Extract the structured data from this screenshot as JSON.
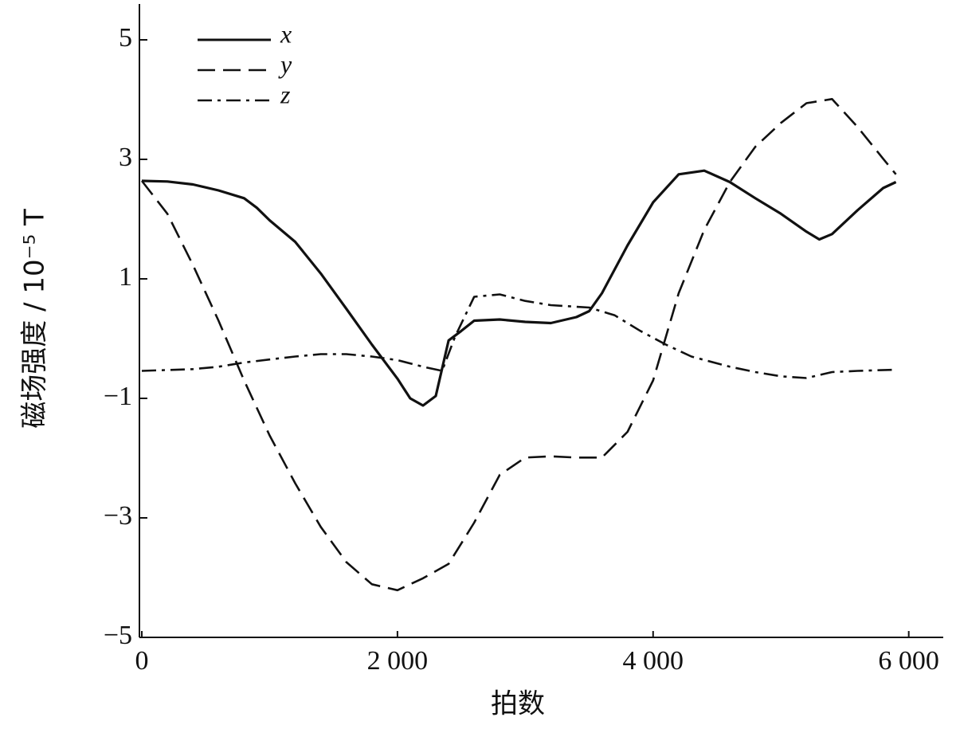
{
  "chart_data": {
    "type": "line",
    "xlabel": "拍数",
    "ylabel": "磁场强度 / 10⁻⁵ T",
    "xlim": [
      0,
      6270
    ],
    "ylim": [
      -5,
      5.6
    ],
    "xticks": [
      0,
      {
        "value": 2000,
        "label": "2 000"
      },
      {
        "value": 4000,
        "label": "4 000"
      },
      {
        "value": 6000,
        "label": "6 000"
      }
    ],
    "yticks": [
      {
        "value": -5,
        "label": "−5"
      },
      {
        "value": -3,
        "label": "−3"
      },
      {
        "value": -1,
        "label": "−1"
      },
      1,
      3,
      5
    ],
    "legend": "upper left",
    "series": [
      {
        "name": "x",
        "color": "#111111",
        "dash": "solid",
        "x": [
          0,
          200,
          400,
          600,
          800,
          900,
          1000,
          1200,
          1400,
          1600,
          1800,
          2000,
          2100,
          2200,
          2300,
          2400,
          2500,
          2600,
          2800,
          3000,
          3200,
          3400,
          3500,
          3600,
          3800,
          4000,
          4200,
          4400,
          4600,
          4800,
          5000,
          5200,
          5300,
          5400,
          5600,
          5800,
          5900
        ],
        "values": [
          2.64,
          2.63,
          2.58,
          2.48,
          2.35,
          2.19,
          1.98,
          1.62,
          1.09,
          0.5,
          -0.1,
          -0.67,
          -1.0,
          -1.12,
          -0.96,
          -0.03,
          0.13,
          0.3,
          0.32,
          0.28,
          0.26,
          0.36,
          0.46,
          0.76,
          1.56,
          2.28,
          2.75,
          2.81,
          2.62,
          2.35,
          2.09,
          1.79,
          1.66,
          1.75,
          2.15,
          2.52,
          2.62
        ]
      },
      {
        "name": "y",
        "color": "#111111",
        "dash": "dashed",
        "x": [
          0,
          200,
          400,
          600,
          800,
          1000,
          1200,
          1400,
          1600,
          1800,
          2000,
          2200,
          2400,
          2600,
          2800,
          3000,
          3200,
          3400,
          3600,
          3800,
          4000,
          4200,
          4400,
          4600,
          4800,
          5000,
          5200,
          5400,
          5600,
          5800,
          5900
        ],
        "values": [
          2.64,
          2.09,
          1.23,
          0.3,
          -0.7,
          -1.62,
          -2.42,
          -3.15,
          -3.74,
          -4.11,
          -4.21,
          -4.01,
          -3.77,
          -3.08,
          -2.28,
          -1.99,
          -1.97,
          -1.99,
          -1.99,
          -1.56,
          -0.7,
          0.76,
          1.82,
          2.62,
          3.21,
          3.61,
          3.94,
          4.01,
          3.54,
          3.01,
          2.75
        ]
      },
      {
        "name": "z",
        "color": "#111111",
        "dash": "dashdot",
        "x": [
          0,
          400,
          600,
          800,
          1000,
          1200,
          1400,
          1600,
          1800,
          2000,
          2200,
          2350,
          2450,
          2600,
          2800,
          3000,
          3200,
          3500,
          3700,
          3900,
          4100,
          4300,
          4600,
          4800,
          5000,
          5200,
          5400,
          5600,
          5900
        ],
        "values": [
          -0.54,
          -0.51,
          -0.47,
          -0.4,
          -0.35,
          -0.3,
          -0.26,
          -0.26,
          -0.3,
          -0.36,
          -0.47,
          -0.54,
          0.03,
          0.7,
          0.74,
          0.63,
          0.56,
          0.52,
          0.39,
          0.13,
          -0.1,
          -0.3,
          -0.47,
          -0.56,
          -0.63,
          -0.66,
          -0.56,
          -0.54,
          -0.52
        ]
      }
    ]
  }
}
